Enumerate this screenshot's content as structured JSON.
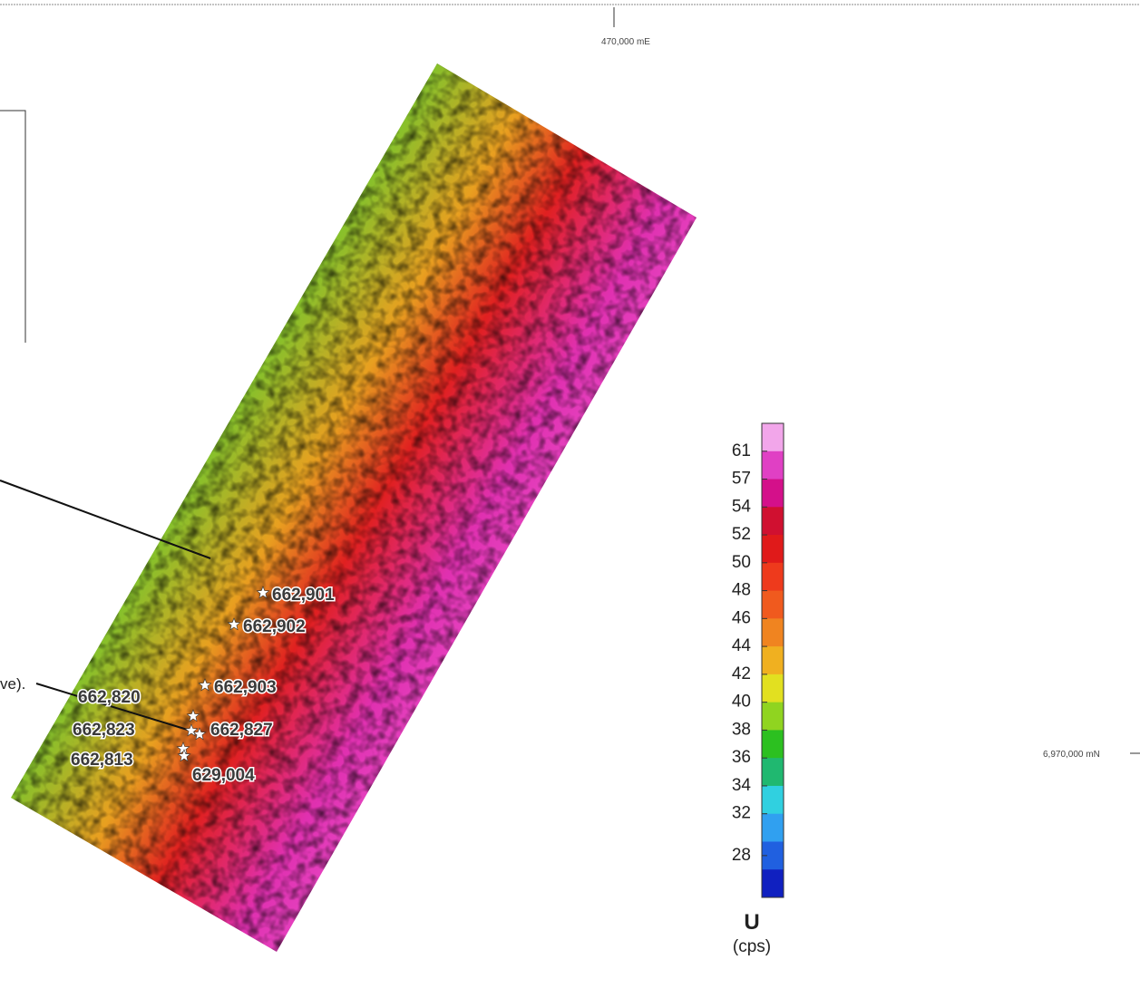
{
  "grid_labels": {
    "easting": "470,000 mE",
    "northing": "6,970,000 mN"
  },
  "callout_fragment": "ve).",
  "samples": [
    {
      "label": "662,901"
    },
    {
      "label": "662,902"
    },
    {
      "label": "662,903"
    },
    {
      "label": "662,820"
    },
    {
      "label": "662,823"
    },
    {
      "label": "662,827"
    },
    {
      "label": "662,813"
    },
    {
      "label": "629,004"
    }
  ],
  "legend": {
    "title": "U",
    "unit": "(cps)",
    "ticks": [
      61,
      57,
      54,
      52,
      50,
      48,
      46,
      44,
      42,
      40,
      38,
      36,
      34,
      32,
      28
    ],
    "colors": [
      "#f2a6ea",
      "#e040c4",
      "#d4108a",
      "#d01030",
      "#e01a1a",
      "#ee3a1c",
      "#f05a1e",
      "#f08420",
      "#f0b020",
      "#e2e020",
      "#90d420",
      "#2cc020",
      "#20b870",
      "#30d0e0",
      "#30a0f0",
      "#2060e0",
      "#1020c0"
    ]
  }
}
